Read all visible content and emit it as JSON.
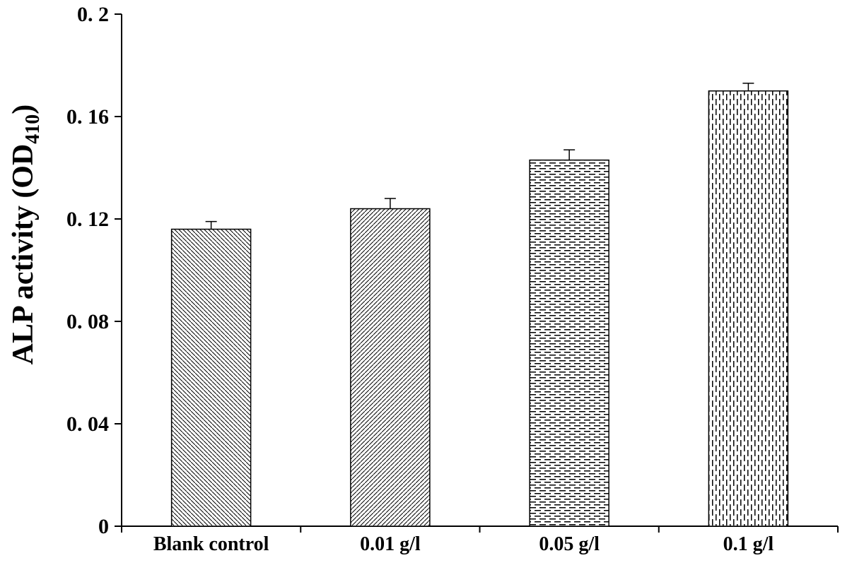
{
  "chart_data": {
    "type": "bar",
    "title": "",
    "categories": [
      "Blank control",
      "0.01 g/l",
      "0.05 g/l",
      "0.1 g/l"
    ],
    "values": [
      0.116,
      0.124,
      0.143,
      0.17
    ],
    "error_bars": [
      0.003,
      0.004,
      0.004,
      0.003
    ],
    "xlabel": "",
    "ylabel": "ALP activity (OD410)",
    "ylabel_prefix": "ALP activity (OD",
    "ylabel_subscript": "410",
    "ylabel_suffix": ")",
    "ylim": [
      0,
      0.2
    ],
    "yticks": [
      0,
      0.04,
      0.08,
      0.12,
      0.16,
      0.2
    ],
    "ytick_labels": [
      "0",
      "0. 04",
      "0. 08",
      "0. 12",
      "0. 16",
      "0. 2"
    ],
    "grid": false,
    "legend": false,
    "bar_fill": "#ffffff",
    "axis_color": "#000000",
    "bar_patterns": [
      "diagonal-backslash",
      "diagonal-slash",
      "horizontal-dash",
      "vertical-dash"
    ]
  }
}
